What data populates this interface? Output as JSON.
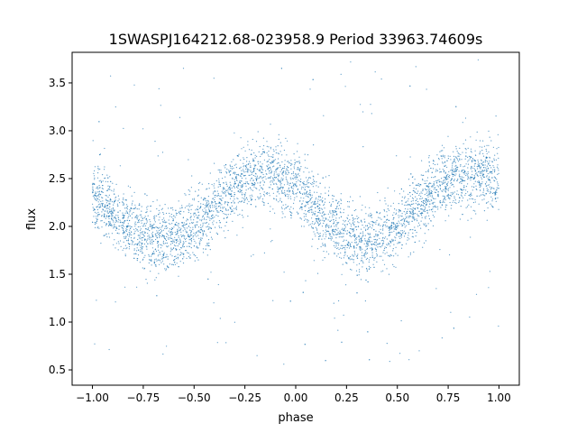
{
  "chart_data": {
    "type": "scatter",
    "title": "1SWASPJ164212.68-023958.9 Period 33963.74609s",
    "xlabel": "phase",
    "ylabel": "flux",
    "xlim": [
      -1.1,
      1.1
    ],
    "ylim": [
      0.34,
      3.82
    ],
    "x_ticks": [
      -1.0,
      -0.75,
      -0.5,
      -0.25,
      0.0,
      0.25,
      0.5,
      0.75,
      1.0
    ],
    "x_tick_labels": [
      "−1.00",
      "−0.75",
      "−0.50",
      "−0.25",
      "0.00",
      "0.25",
      "0.50",
      "0.75",
      "1.00"
    ],
    "y_ticks": [
      0.5,
      1.0,
      1.5,
      2.0,
      2.5,
      3.0,
      3.5
    ],
    "y_tick_labels": [
      "0.5",
      "1.0",
      "1.5",
      "2.0",
      "2.5",
      "3.0",
      "3.5"
    ],
    "grid": false,
    "legend": "none",
    "marker_color": "#1f77b4",
    "series": [
      {
        "x": [
          -1.0,
          -0.95,
          -0.9,
          -0.85,
          -0.8,
          -0.75,
          -0.7,
          -0.65,
          -0.6,
          -0.55,
          -0.5,
          -0.45,
          -0.4,
          -0.35,
          -0.3,
          -0.25,
          -0.2,
          -0.15,
          -0.1,
          -0.05,
          0.0,
          0.05,
          0.1,
          0.15,
          0.2,
          0.25,
          0.3,
          0.35,
          0.4,
          0.45,
          0.5,
          0.55,
          0.6,
          0.65,
          0.7,
          0.75,
          0.8,
          0.85,
          0.9,
          0.95,
          1.0
        ],
        "y": [
          2.3,
          2.25,
          2.15,
          2.05,
          1.98,
          1.92,
          1.88,
          1.87,
          1.88,
          1.92,
          1.98,
          2.08,
          2.2,
          2.32,
          2.42,
          2.48,
          2.52,
          2.55,
          2.55,
          2.5,
          2.4,
          2.28,
          2.15,
          2.05,
          1.97,
          1.92,
          1.88,
          1.87,
          1.88,
          1.92,
          1.98,
          2.08,
          2.2,
          2.32,
          2.42,
          2.48,
          2.52,
          2.55,
          2.55,
          2.53,
          2.48
        ],
        "spread": 0.17
      }
    ]
  }
}
